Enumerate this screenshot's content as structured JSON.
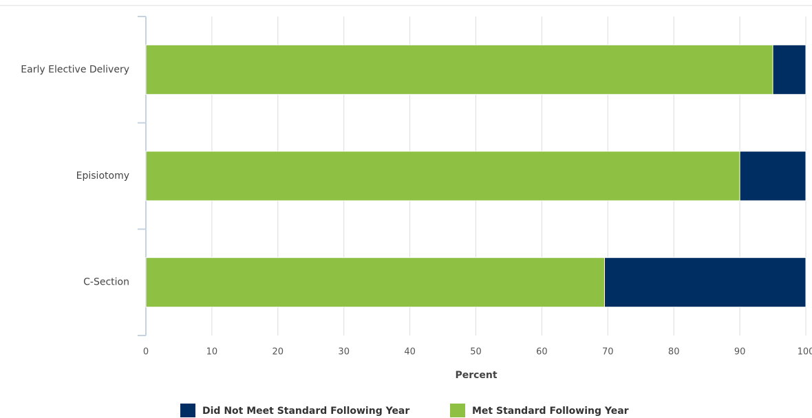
{
  "chart_data": {
    "type": "stacked-bar-horizontal",
    "categories": [
      "Early Elective Delivery",
      "Episiotomy",
      "C-Section"
    ],
    "series": [
      {
        "name": "Did Not Meet Standard Following Year",
        "color": "#002d62",
        "values": [
          5,
          10,
          30.5
        ]
      },
      {
        "name": "Met Standard Following Year",
        "color": "#8dc043",
        "values": [
          95,
          90,
          69.5
        ]
      }
    ],
    "x_label": "Percent",
    "xlim": [
      0,
      100
    ],
    "xticks": [
      0,
      10,
      20,
      30,
      40,
      50,
      60,
      70,
      80,
      90,
      100
    ],
    "grid": true,
    "legend": "bottom"
  }
}
